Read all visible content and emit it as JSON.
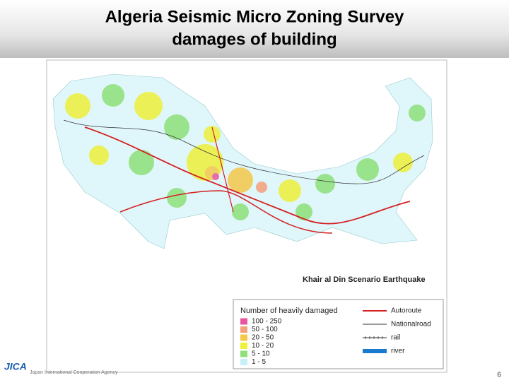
{
  "header": {
    "title_lines": [
      "Algeria Seismic Micro Zoning Survey",
      "damages of building"
    ]
  },
  "map": {
    "caption": "Khair al Din Scenario Earthquake"
  },
  "legend": {
    "title": "Number of heavily damaged",
    "classes": [
      {
        "range": "100 - 250",
        "color": "#e8559c"
      },
      {
        "range": "50 - 100",
        "color": "#f4a07a"
      },
      {
        "range": "20 - 50",
        "color": "#f5c84a"
      },
      {
        "range": "10 - 20",
        "color": "#eef03a"
      },
      {
        "range": "5 - 10",
        "color": "#8fe07a"
      },
      {
        "range": "1 - 5",
        "color": "#c8f0f8"
      }
    ],
    "lines": [
      {
        "label": "Autoroute",
        "color": "#d42020",
        "style": "thick"
      },
      {
        "label": "Nationalroad",
        "color": "#333333",
        "style": "thin"
      },
      {
        "label": "rail",
        "color": "#333333",
        "style": "rail"
      },
      {
        "label": "river",
        "color": "#1a7ad0",
        "style": "band"
      }
    ]
  },
  "footer": {
    "logo": "JICA",
    "org": "Japan International Cooperation Agency",
    "page_number": "6"
  }
}
